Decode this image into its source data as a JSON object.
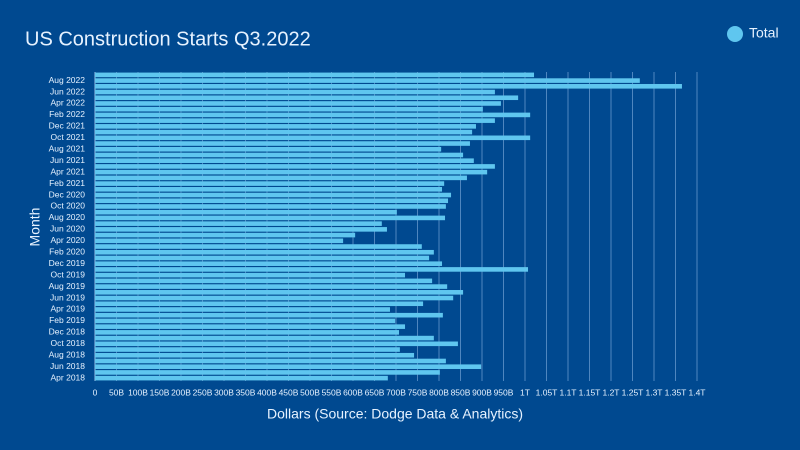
{
  "chart_data": {
    "type": "barh",
    "title": "US Construction Starts Q3.2022",
    "xlabel": "Dollars (Source: Dodge Data & Analytics)",
    "ylabel": "Month",
    "legend_position": "top-right",
    "grid": true,
    "series": [
      {
        "name": "Total",
        "color": "#5fc6ef",
        "values": [
          681000000000,
          802000000000,
          898000000000,
          816000000000,
          742000000000,
          709000000000,
          844000000000,
          788000000000,
          707000000000,
          721000000000,
          698000000000,
          809000000000,
          686000000000,
          763000000000,
          833000000000,
          856000000000,
          819000000000,
          784000000000,
          721000000000,
          1007000000000,
          807000000000,
          777000000000,
          788000000000,
          760000000000,
          577000000000,
          605000000000,
          679000000000,
          667000000000,
          814000000000,
          702000000000,
          816000000000,
          821000000000,
          828000000000,
          807000000000,
          812000000000,
          865000000000,
          912000000000,
          930000000000,
          881000000000,
          856000000000,
          805000000000,
          872000000000,
          1012000000000,
          877000000000,
          886000000000,
          930000000000,
          1012000000000,
          902000000000,
          944000000000,
          984000000000,
          930000000000,
          1365000000000,
          1267000000000,
          1021000000000
        ]
      }
    ],
    "categories": [
      "Apr 2018",
      null,
      "Jun 2018",
      null,
      "Aug 2018",
      null,
      "Oct 2018",
      null,
      "Dec 2018",
      null,
      "Feb 2019",
      null,
      "Apr 2019",
      null,
      "Jun 2019",
      null,
      "Aug 2019",
      null,
      "Oct 2019",
      null,
      "Dec 2019",
      null,
      "Feb 2020",
      null,
      "Apr 2020",
      null,
      "Jun 2020",
      null,
      "Aug 2020",
      null,
      "Oct 2020",
      null,
      "Dec 2020",
      null,
      "Feb 2021",
      null,
      "Apr 2021",
      null,
      "Jun 2021",
      null,
      "Aug 2021",
      null,
      "Oct 2021",
      null,
      "Dec 2021",
      null,
      "Feb 2022",
      null,
      "Apr 2022",
      null,
      "Jun 2022",
      null,
      "Aug 2022",
      null
    ],
    "xlim": [
      0,
      1400000000000
    ],
    "xticks": [
      0,
      {
        "value": 50000000000,
        "label": "50B"
      },
      {
        "value": 100000000000,
        "label": "100B"
      },
      {
        "value": 150000000000,
        "label": "150B"
      },
      {
        "value": 200000000000,
        "label": "200B"
      },
      {
        "value": 250000000000,
        "label": "250B"
      },
      {
        "value": 300000000000,
        "label": "300B"
      },
      {
        "value": 350000000000,
        "label": "350B"
      },
      {
        "value": 400000000000,
        "label": "400B"
      },
      {
        "value": 450000000000,
        "label": "450B"
      },
      {
        "value": 500000000000,
        "label": "500B"
      },
      {
        "value": 550000000000,
        "label": "550B"
      },
      {
        "value": 600000000000,
        "label": "600B"
      },
      {
        "value": 650000000000,
        "label": "650B"
      },
      {
        "value": 700000000000,
        "label": "700B"
      },
      {
        "value": 750000000000,
        "label": "750B"
      },
      {
        "value": 800000000000,
        "label": "800B"
      },
      {
        "value": 850000000000,
        "label": "850B"
      },
      {
        "value": 900000000000,
        "label": "900B"
      },
      {
        "value": 950000000000,
        "label": "950B"
      },
      {
        "value": 1000000000000,
        "label": "1T"
      },
      {
        "value": 1050000000000,
        "label": "1.05T"
      },
      {
        "value": 1100000000000,
        "label": "1.1T"
      },
      {
        "value": 1150000000000,
        "label": "1.15T"
      },
      {
        "value": 1200000000000,
        "label": "1.2T"
      },
      {
        "value": 1250000000000,
        "label": "1.25T"
      },
      {
        "value": 1300000000000,
        "label": "1.3T"
      },
      {
        "value": 1350000000000,
        "label": "1.35T"
      },
      {
        "value": 1400000000000,
        "label": "1.4T"
      }
    ]
  }
}
